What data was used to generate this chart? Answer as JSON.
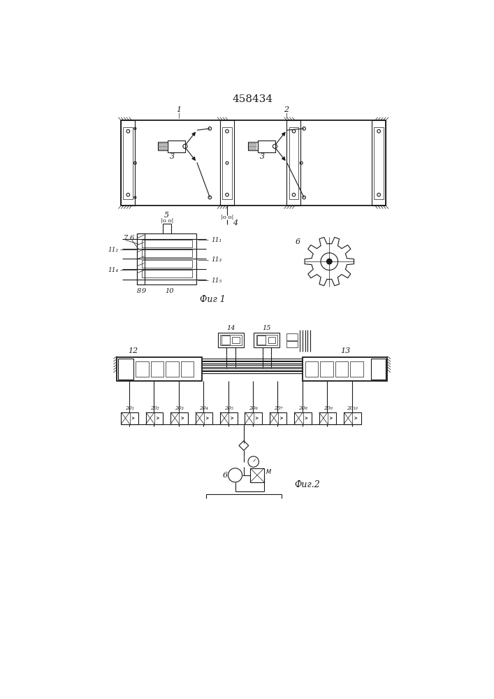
{
  "title": "458434",
  "fig1_label": "Фиг 1",
  "fig2_label": "Фиг.2",
  "bg_color": "#ffffff",
  "line_color": "#1a1a1a",
  "lw": 0.8,
  "tlw": 0.5,
  "thickw": 1.3
}
